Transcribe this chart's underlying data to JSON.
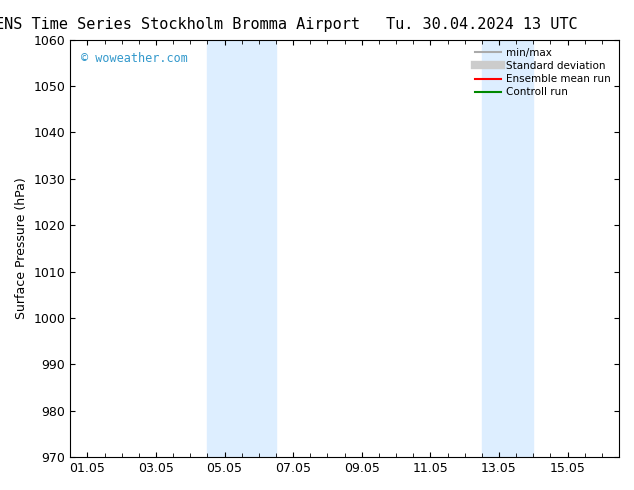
{
  "title_left": "ENS Time Series Stockholm Bromma Airport",
  "title_right": "Tu. 30.04.2024 13 UTC",
  "ylabel": "Surface Pressure (hPa)",
  "ylim": [
    970,
    1060
  ],
  "yticks": [
    970,
    980,
    990,
    1000,
    1010,
    1020,
    1030,
    1040,
    1050,
    1060
  ],
  "xtick_labels": [
    "01.05",
    "03.05",
    "05.05",
    "07.05",
    "09.05",
    "11.05",
    "13.05",
    "15.05"
  ],
  "xtick_positions": [
    0,
    2,
    4,
    6,
    8,
    10,
    12,
    14
  ],
  "xmin": -0.5,
  "xmax": 15.5,
  "shade_bands": [
    {
      "xmin": 3.5,
      "xmax": 5.5
    },
    {
      "xmin": 11.5,
      "xmax": 13.0
    }
  ],
  "shade_color": "#ddeeff",
  "watermark": "© woweather.com",
  "watermark_color": "#3399cc",
  "legend_entries": [
    {
      "label": "min/max",
      "color": "#aaaaaa",
      "lw": 1.5
    },
    {
      "label": "Standard deviation",
      "color": "#cccccc",
      "lw": 6
    },
    {
      "label": "Ensemble mean run",
      "color": "#ff0000",
      "lw": 1.5
    },
    {
      "label": "Controll run",
      "color": "#008800",
      "lw": 1.5
    }
  ],
  "bg_color": "#ffffff",
  "axes_bg_color": "#ffffff",
  "title_fontsize": 11,
  "tick_fontsize": 9,
  "ylabel_fontsize": 9
}
